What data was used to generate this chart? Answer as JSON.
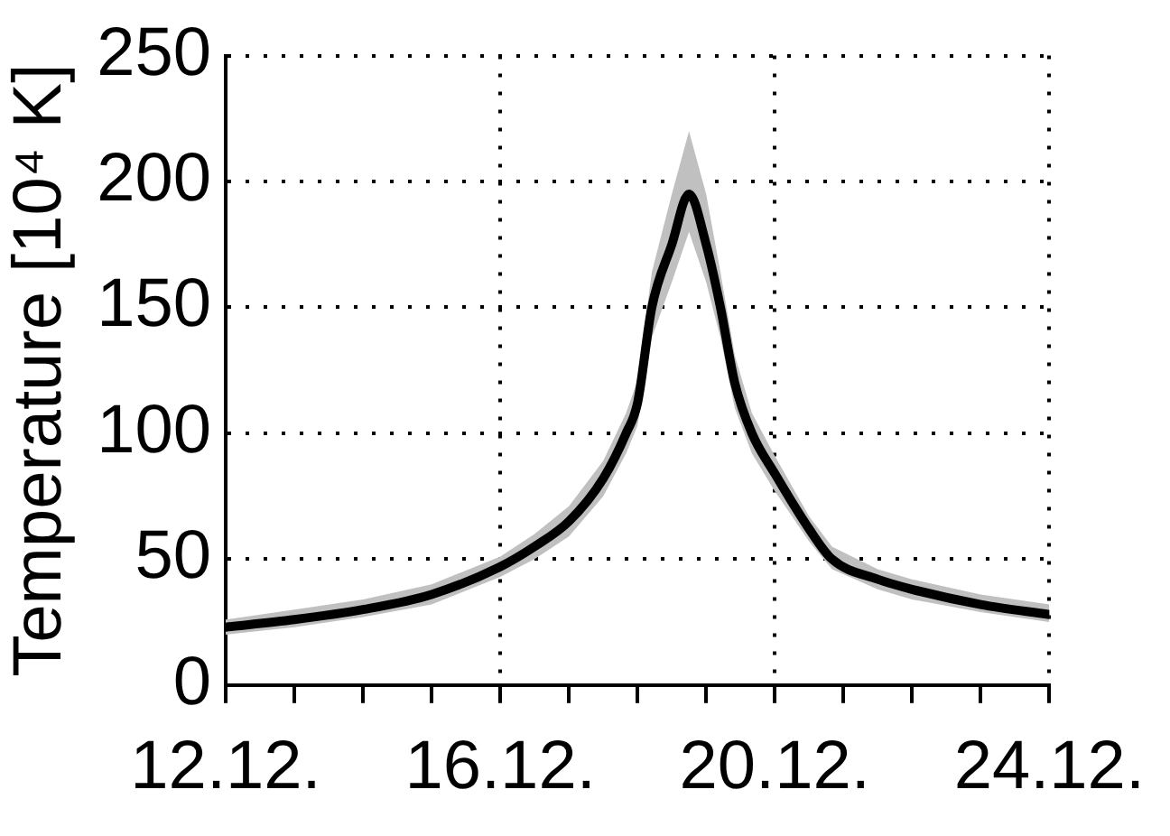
{
  "chart_data": {
    "type": "line",
    "ylabel": "Temperature [10⁴ K]",
    "xlim": [
      "--12-12",
      "--12-24"
    ],
    "xticks": [
      {
        "value": "--12-12",
        "label": "12.12."
      },
      {
        "value": "--12-13",
        "label": null
      },
      {
        "value": "--12-14",
        "label": null
      },
      {
        "value": "--12-15",
        "label": null
      },
      {
        "value": "--12-16",
        "label": "16.12."
      },
      {
        "value": "--12-17",
        "label": null
      },
      {
        "value": "--12-18",
        "label": null
      },
      {
        "value": "--12-19",
        "label": null
      },
      {
        "value": "--12-20",
        "label": "20.12."
      },
      {
        "value": "--12-21",
        "label": null
      },
      {
        "value": "--12-22",
        "label": null
      },
      {
        "value": "--12-23",
        "label": null
      },
      {
        "value": "--12-24",
        "label": "24.12."
      }
    ],
    "ylim": [
      0,
      250
    ],
    "yticks": [
      0,
      50,
      100,
      150,
      200,
      250
    ],
    "grid": true,
    "legend": false,
    "marker": "none",
    "line_style": "solid",
    "series": [
      {
        "color": "#000000",
        "x": [
          "--12-12",
          "--12-13",
          "--12-14",
          "--12-15",
          "--12-16",
          "--12-16T12:00",
          "--12-17",
          "--12-17T12:00",
          "--12-17T20:00",
          "--12-18",
          "--12-18T05:00",
          "--12-18T12:00",
          "--12-18T18:00",
          "--12-19",
          "--12-19T05:00",
          "--12-19T10:00",
          "--12-19T16:00",
          "--12-20",
          "--12-20T12:00",
          "--12-20T20:00",
          "--12-21T12:00",
          "--12-22",
          "--12-23",
          "--12-24"
        ],
        "values": [
          23,
          26,
          30,
          36,
          47,
          55,
          65,
          82,
          100,
          112,
          150,
          175,
          195,
          175,
          150,
          120,
          100,
          84,
          62,
          50,
          42,
          38,
          32,
          28
        ],
        "lower": [
          20,
          23,
          27,
          32,
          43,
          50,
          59,
          75,
          92,
          103,
          138,
          160,
          180,
          160,
          138,
          110,
          92,
          77,
          57,
          46,
          38,
          34,
          29,
          25
        ],
        "upper": [
          26,
          30,
          34,
          40,
          51,
          60,
          71,
          89,
          108,
          121,
          164,
          195,
          220,
          195,
          164,
          131,
          108,
          91,
          67,
          55,
          46,
          42,
          36,
          32
        ]
      }
    ]
  }
}
